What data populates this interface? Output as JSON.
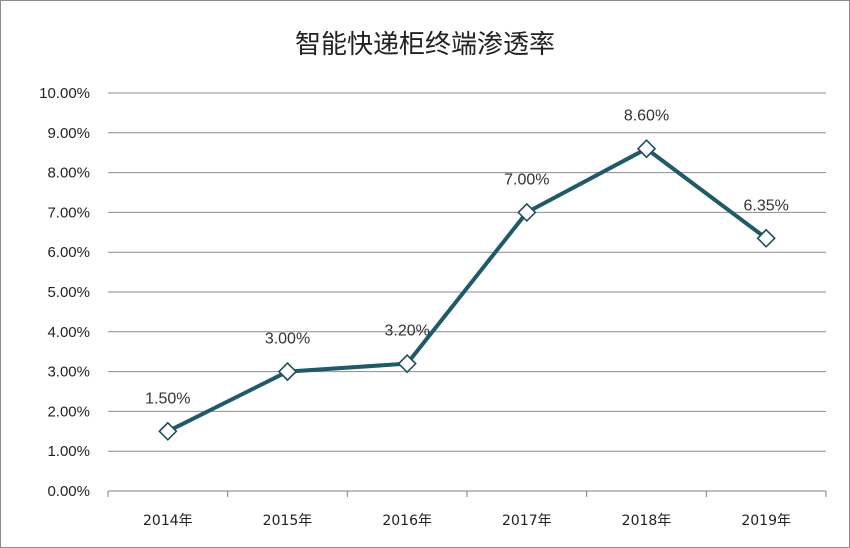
{
  "chart_data": {
    "type": "line",
    "title": "智能快递柜终端渗透率",
    "categories": [
      "2014年",
      "2015年",
      "2016年",
      "2017年",
      "2018年",
      "2019年"
    ],
    "values": [
      1.5,
      3.0,
      3.2,
      7.0,
      8.6,
      6.35
    ],
    "data_labels": [
      "1.50%",
      "3.00%",
      "3.20%",
      "7.00%",
      "8.60%",
      "6.35%"
    ],
    "yticks": [
      "0.00%",
      "1.00%",
      "2.00%",
      "3.00%",
      "4.00%",
      "5.00%",
      "6.00%",
      "7.00%",
      "8.00%",
      "9.00%",
      "10.00%"
    ],
    "ylim": [
      0,
      10
    ],
    "grid": true,
    "marker": "diamond",
    "line_color": "#1f5a6b"
  }
}
